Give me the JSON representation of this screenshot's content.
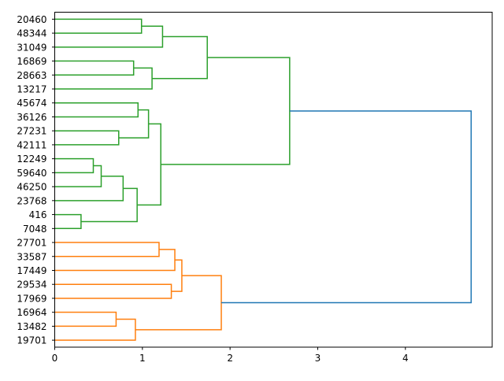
{
  "chart_data": {
    "type": "dendrogram",
    "orientation": "right",
    "title": "",
    "xlabel": "",
    "ylabel": "",
    "xlim": [
      0,
      4.99
    ],
    "xticks": [
      "0",
      "1",
      "2",
      "3",
      "4"
    ],
    "leaves": [
      "20460",
      "48344",
      "31049",
      "16869",
      "28663",
      "13217",
      "45674",
      "36126",
      "27231",
      "42111",
      "12249",
      "59640",
      "46250",
      "23768",
      "416",
      "7048",
      "27701",
      "33587",
      "17449",
      "29534",
      "17969",
      "16964",
      "13482",
      "19701"
    ],
    "colors": {
      "green": "#2ca02c",
      "orange": "#ff7f0e",
      "blue": "#1f77b4"
    },
    "tree": {
      "h": 4.75,
      "color": "blue",
      "c": [
        {
          "h": 2.68,
          "color": "green",
          "c": [
            {
              "h": 1.74,
              "color": "green",
              "c": [
                {
                  "h": 1.23,
                  "color": "green",
                  "c": [
                    {
                      "h": 0.99,
                      "color": "green",
                      "c": [
                        0,
                        1
                      ]
                    },
                    2
                  ]
                },
                {
                  "h": 1.11,
                  "color": "green",
                  "c": [
                    {
                      "h": 0.9,
                      "color": "green",
                      "c": [
                        3,
                        4
                      ]
                    },
                    5
                  ]
                }
              ]
            },
            {
              "h": 1.21,
              "color": "green",
              "c": [
                {
                  "h": 1.07,
                  "color": "green",
                  "c": [
                    {
                      "h": 0.95,
                      "color": "green",
                      "c": [
                        6,
                        7
                      ]
                    },
                    {
                      "h": 0.73,
                      "color": "green",
                      "c": [
                        8,
                        9
                      ]
                    }
                  ]
                },
                {
                  "h": 0.94,
                  "color": "green",
                  "c": [
                    {
                      "h": 0.78,
                      "color": "green",
                      "c": [
                        {
                          "h": 0.53,
                          "color": "green",
                          "c": [
                            {
                              "h": 0.44,
                              "color": "green",
                              "c": [
                                10,
                                11
                              ]
                            },
                            12
                          ]
                        },
                        13
                      ]
                    },
                    {
                      "h": 0.3,
                      "color": "green",
                      "c": [
                        14,
                        15
                      ]
                    }
                  ]
                }
              ]
            }
          ]
        },
        {
          "h": 1.9,
          "color": "orange",
          "c": [
            {
              "h": 1.45,
              "color": "orange",
              "c": [
                {
                  "h": 1.37,
                  "color": "orange",
                  "c": [
                    {
                      "h": 1.19,
                      "color": "orange",
                      "c": [
                        16,
                        17
                      ]
                    },
                    18
                  ]
                },
                {
                  "h": 1.33,
                  "color": "orange",
                  "c": [
                    19,
                    20
                  ]
                }
              ]
            },
            {
              "h": 0.92,
              "color": "orange",
              "c": [
                {
                  "h": 0.7,
                  "color": "orange",
                  "c": [
                    21,
                    22
                  ]
                },
                23
              ]
            }
          ]
        }
      ]
    }
  }
}
